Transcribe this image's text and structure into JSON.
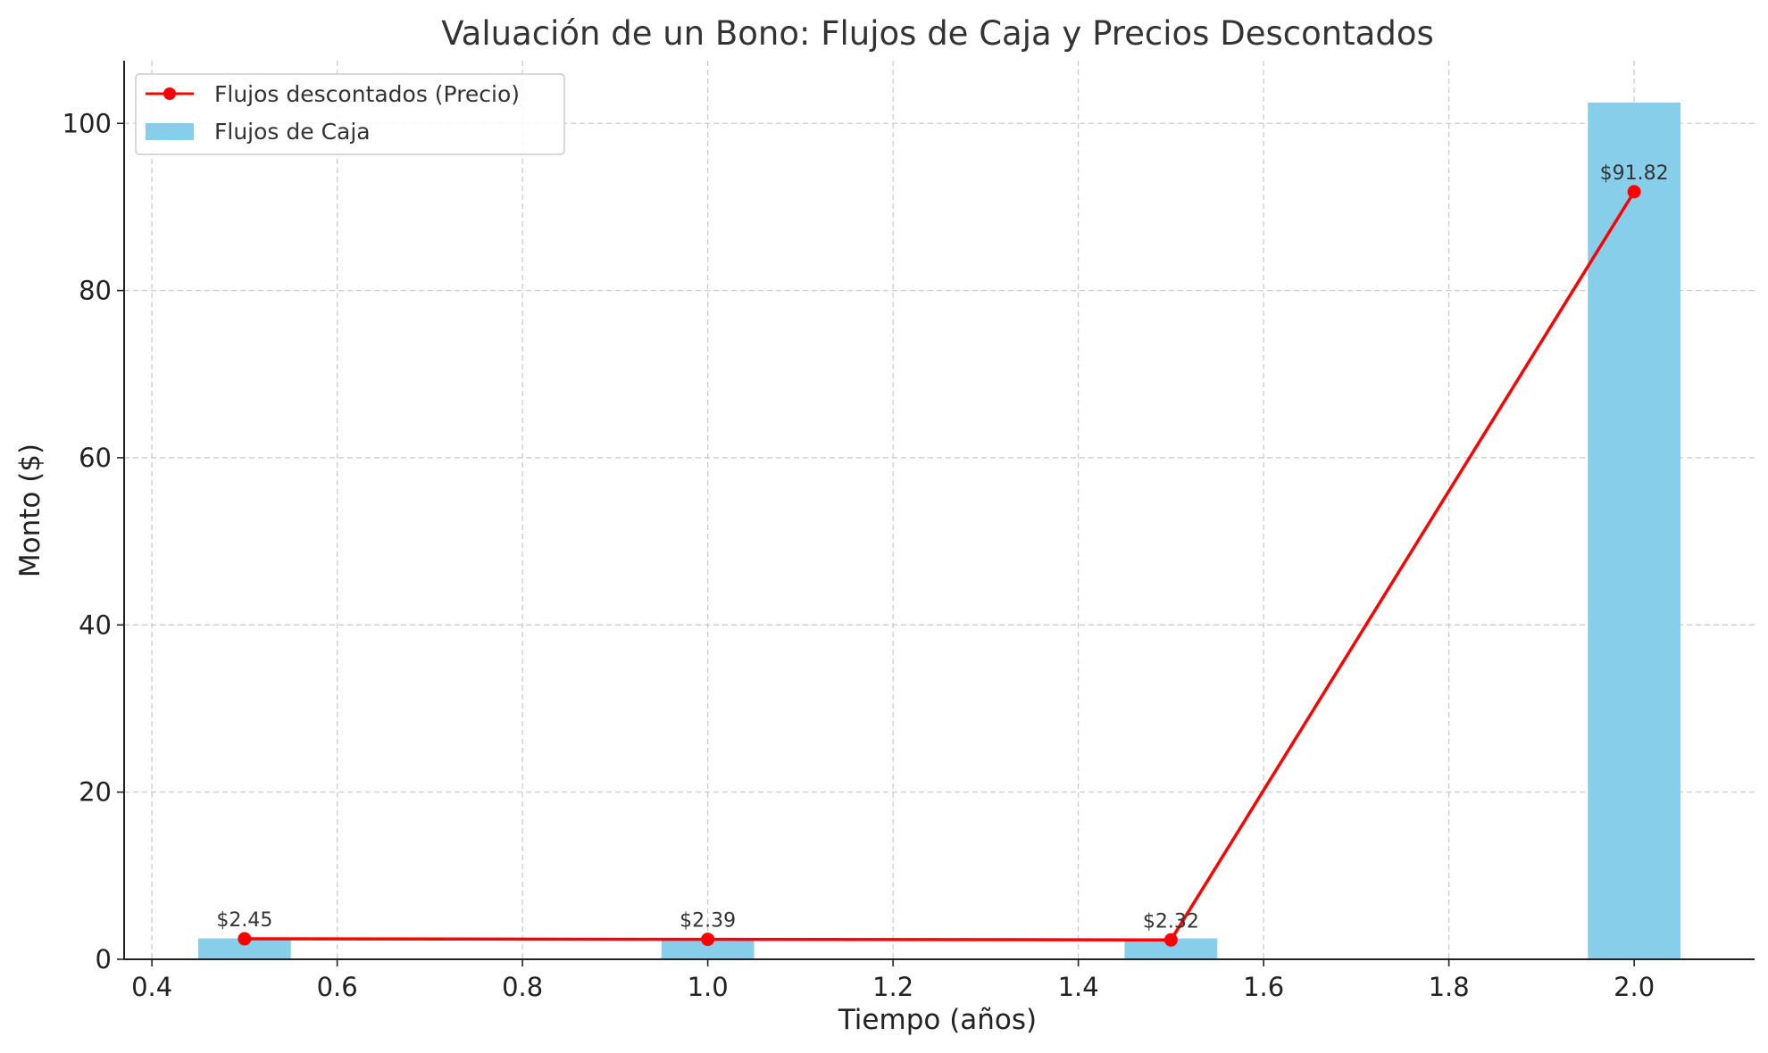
{
  "chart_data": {
    "type": "bar",
    "title": "Valuación de un Bono: Flujos de Caja y Precios Descontados",
    "xlabel": "Tiempo (años)",
    "ylabel": "Monto ($)",
    "xlim": [
      0.37,
      2.13
    ],
    "ylim": [
      0,
      107.5
    ],
    "xticks": [
      0.4,
      0.6,
      0.8,
      1.0,
      1.2,
      1.4,
      1.6,
      1.8,
      2.0
    ],
    "xtick_labels": [
      "0.4",
      "0.6",
      "0.8",
      "1.0",
      "1.2",
      "1.4",
      "1.6",
      "1.8",
      "2.0"
    ],
    "yticks": [
      0,
      20,
      40,
      60,
      80,
      100
    ],
    "ytick_labels": [
      "0",
      "20",
      "40",
      "60",
      "80",
      "100"
    ],
    "grid": true,
    "legend_position": "top-left",
    "x": [
      0.5,
      1.0,
      1.5,
      2.0
    ],
    "bar_width": 0.1,
    "series": [
      {
        "name": "Flujos de Caja",
        "kind": "bar",
        "color": "#87ceeb",
        "values": [
          2.5,
          2.5,
          2.5,
          102.5
        ]
      },
      {
        "name": "Flujos descontados (Precio)",
        "kind": "line",
        "color": "#ff0000",
        "values": [
          2.45,
          2.39,
          2.32,
          91.82
        ],
        "labels": [
          "$2.45",
          "$2.39",
          "$2.32",
          "$91.82"
        ]
      }
    ]
  }
}
